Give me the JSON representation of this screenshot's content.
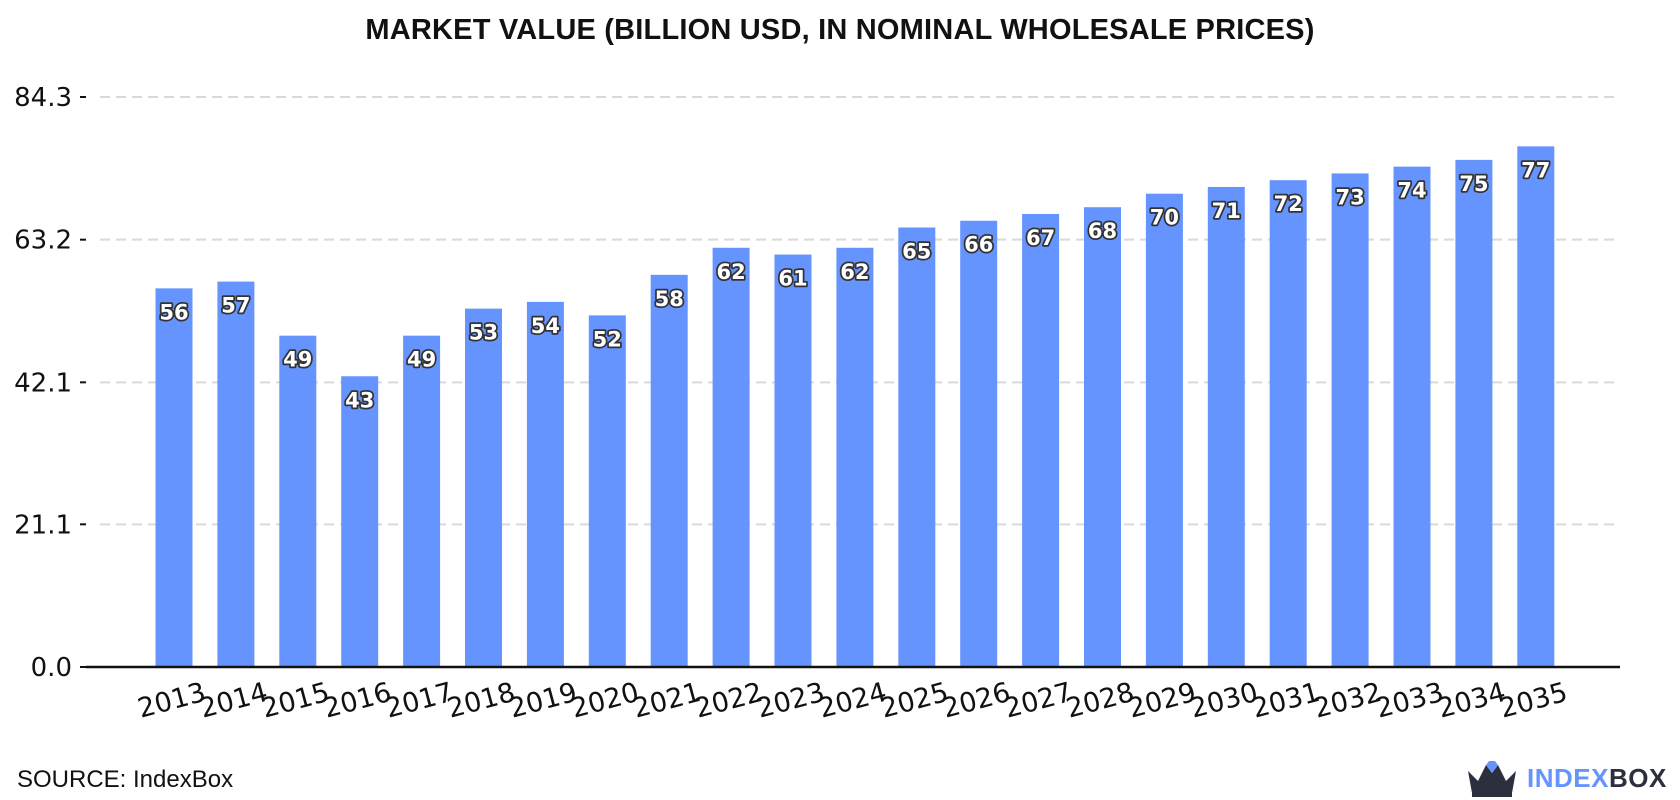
{
  "chart_data": {
    "type": "bar",
    "title": "MARKET VALUE (BILLION USD, IN NOMINAL WHOLESALE PRICES)",
    "xlabel": "",
    "ylabel": "",
    "categories": [
      "2013",
      "2014",
      "2015",
      "2016",
      "2017",
      "2018",
      "2019",
      "2020",
      "2021",
      "2022",
      "2023",
      "2024",
      "2025",
      "2026",
      "2027",
      "2028",
      "2029",
      "2030",
      "2031",
      "2032",
      "2033",
      "2034",
      "2035"
    ],
    "values": [
      56,
      57,
      49,
      43,
      49,
      53,
      54,
      52,
      58,
      62,
      61,
      62,
      65,
      66,
      67,
      68,
      70,
      71,
      72,
      73,
      74,
      75,
      77
    ],
    "data_labels": [
      "56",
      "57",
      "49",
      "43",
      "49",
      "53",
      "54",
      "52",
      "58",
      "62",
      "61",
      "62",
      "65",
      "66",
      "67",
      "68",
      "70",
      "71",
      "72",
      "73",
      "74",
      "75",
      "77"
    ],
    "yticks": [
      0.0,
      21.1,
      42.1,
      63.2,
      84.3
    ],
    "ytick_labels": [
      "0.0",
      "21.1",
      "42.1",
      "63.2",
      "84.3"
    ],
    "ylim": [
      0,
      84.3
    ],
    "grid": "horizontal-dashed",
    "bar_color": "#6694ff",
    "legend": "none"
  },
  "footer": {
    "source": "SOURCE: IndexBox"
  },
  "logo": {
    "part1": "INDEX",
    "part2": "BOX",
    "icon": "indexbox-crown-icon"
  }
}
